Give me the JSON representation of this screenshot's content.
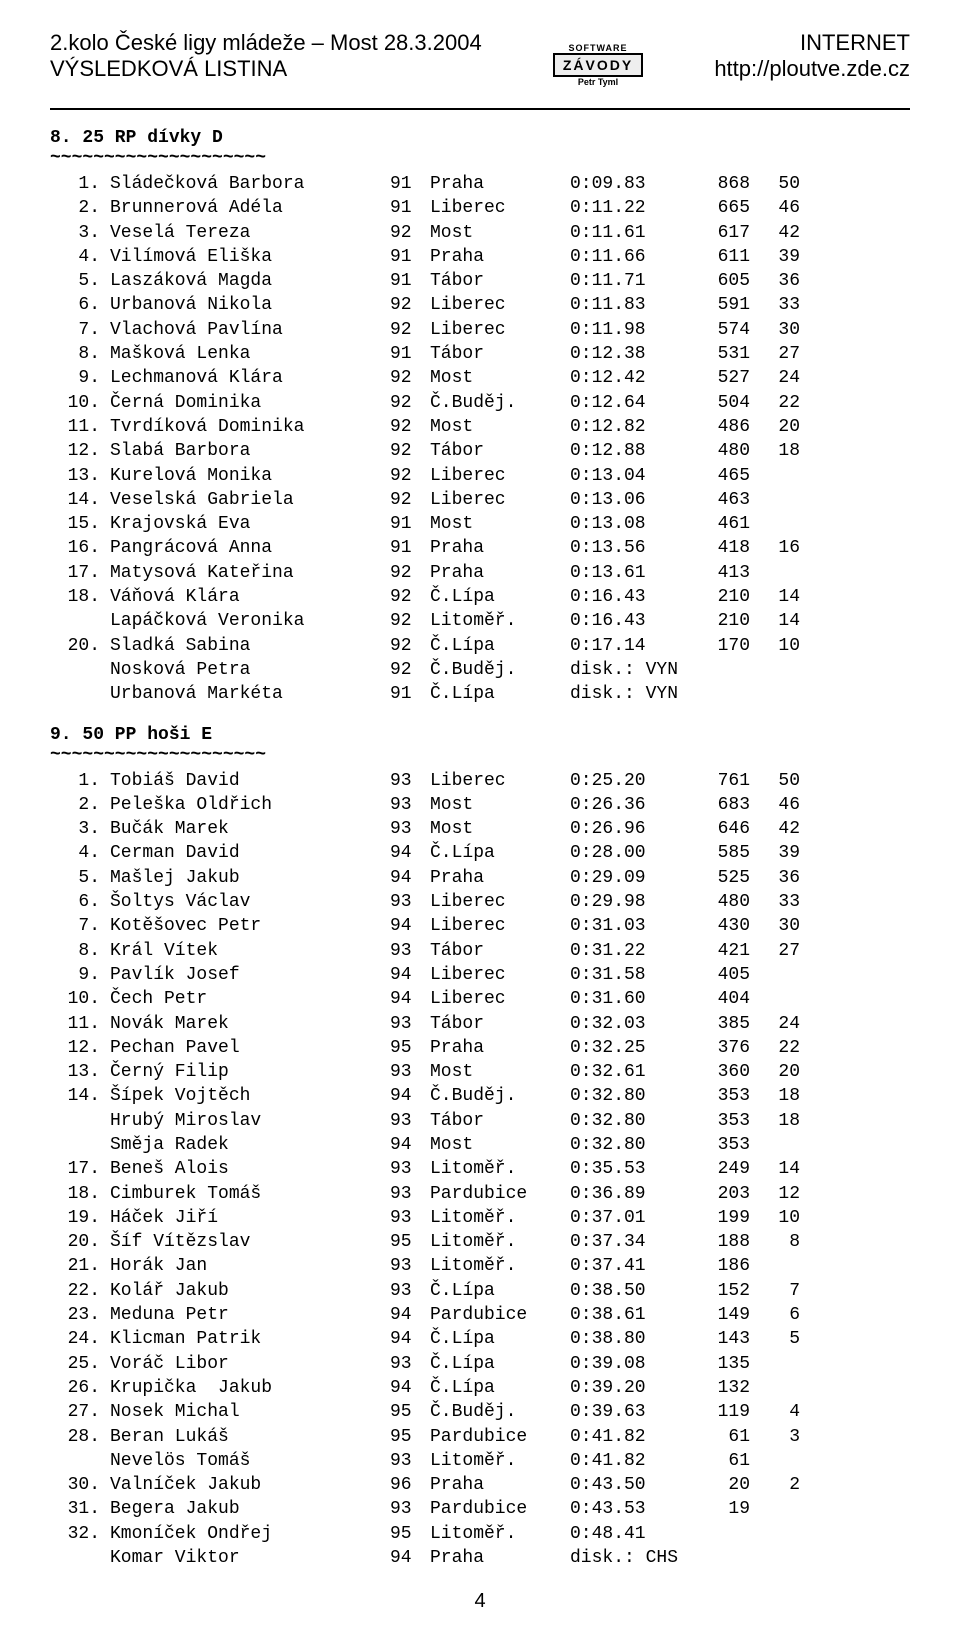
{
  "header": {
    "title_line1": "2.kolo České ligy mládeže – Most 28.3.2004",
    "title_line2": "VÝSLEDKOVÁ  LISTINA",
    "right_line1": "INTERNET",
    "right_line2": "http://ploutve.zde.cz",
    "logo_top": "SOFTWARE",
    "logo_mid": "ZÁVODY",
    "logo_bot": "Petr Tyml"
  },
  "section1": {
    "title": "8. 25 RP dívky D",
    "underline": "~~~~~~~~~~~~~~~~~~~~",
    "rows": [
      {
        "rank": "1.",
        "name": "Sládečková Barbora",
        "year": "91",
        "club": "Praha",
        "time": "0:09.83",
        "pts": "868",
        "bonus": "50"
      },
      {
        "rank": "2.",
        "name": "Brunnerová Adéla",
        "year": "91",
        "club": "Liberec",
        "time": "0:11.22",
        "pts": "665",
        "bonus": "46"
      },
      {
        "rank": "3.",
        "name": "Veselá Tereza",
        "year": "92",
        "club": "Most",
        "time": "0:11.61",
        "pts": "617",
        "bonus": "42"
      },
      {
        "rank": "4.",
        "name": "Vilímová Eliška",
        "year": "91",
        "club": "Praha",
        "time": "0:11.66",
        "pts": "611",
        "bonus": "39"
      },
      {
        "rank": "5.",
        "name": "Laszáková Magda",
        "year": "91",
        "club": "Tábor",
        "time": "0:11.71",
        "pts": "605",
        "bonus": "36"
      },
      {
        "rank": "6.",
        "name": "Urbanová Nikola",
        "year": "92",
        "club": "Liberec",
        "time": "0:11.83",
        "pts": "591",
        "bonus": "33"
      },
      {
        "rank": "7.",
        "name": "Vlachová Pavlína",
        "year": "92",
        "club": "Liberec",
        "time": "0:11.98",
        "pts": "574",
        "bonus": "30"
      },
      {
        "rank": "8.",
        "name": "Mašková Lenka",
        "year": "91",
        "club": "Tábor",
        "time": "0:12.38",
        "pts": "531",
        "bonus": "27"
      },
      {
        "rank": "9.",
        "name": "Lechmanová Klára",
        "year": "92",
        "club": "Most",
        "time": "0:12.42",
        "pts": "527",
        "bonus": "24"
      },
      {
        "rank": "10.",
        "name": "Černá Dominika",
        "year": "92",
        "club": "Č.Buděj.",
        "time": "0:12.64",
        "pts": "504",
        "bonus": "22"
      },
      {
        "rank": "11.",
        "name": "Tvrdíková Dominika",
        "year": "92",
        "club": "Most",
        "time": "0:12.82",
        "pts": "486",
        "bonus": "20"
      },
      {
        "rank": "12.",
        "name": "Slabá Barbora",
        "year": "92",
        "club": "Tábor",
        "time": "0:12.88",
        "pts": "480",
        "bonus": "18"
      },
      {
        "rank": "13.",
        "name": "Kurelová Monika",
        "year": "92",
        "club": "Liberec",
        "time": "0:13.04",
        "pts": "465",
        "bonus": ""
      },
      {
        "rank": "14.",
        "name": "Veselská Gabriela",
        "year": "92",
        "club": "Liberec",
        "time": "0:13.06",
        "pts": "463",
        "bonus": ""
      },
      {
        "rank": "15.",
        "name": "Krajovská Eva",
        "year": "91",
        "club": "Most",
        "time": "0:13.08",
        "pts": "461",
        "bonus": ""
      },
      {
        "rank": "16.",
        "name": "Pangrácová Anna",
        "year": "91",
        "club": "Praha",
        "time": "0:13.56",
        "pts": "418",
        "bonus": "16"
      },
      {
        "rank": "17.",
        "name": "Matysová Kateřina",
        "year": "92",
        "club": "Praha",
        "time": "0:13.61",
        "pts": "413",
        "bonus": ""
      },
      {
        "rank": "18.",
        "name": "Váňová Klára",
        "year": "92",
        "club": "Č.Lípa",
        "time": "0:16.43",
        "pts": "210",
        "bonus": "14"
      },
      {
        "rank": "",
        "name": "Lapáčková Veronika",
        "year": "92",
        "club": "Litoměř.",
        "time": "0:16.43",
        "pts": "210",
        "bonus": "14"
      },
      {
        "rank": "20.",
        "name": "Sladká Sabina",
        "year": "92",
        "club": "Č.Lípa",
        "time": "0:17.14",
        "pts": "170",
        "bonus": "10"
      },
      {
        "rank": "",
        "name": "Nosková Petra",
        "year": "92",
        "club": "Č.Buděj.",
        "time": "disk.: VYN",
        "pts": "",
        "bonus": ""
      },
      {
        "rank": "",
        "name": "Urbanová Markéta",
        "year": "91",
        "club": "Č.Lípa",
        "time": "disk.: VYN",
        "pts": "",
        "bonus": ""
      }
    ]
  },
  "section2": {
    "title": "9. 50 PP hoši E",
    "underline": "~~~~~~~~~~~~~~~~~~~~",
    "rows": [
      {
        "rank": "1.",
        "name": "Tobiáš David",
        "year": "93",
        "club": "Liberec",
        "time": "0:25.20",
        "pts": "761",
        "bonus": "50"
      },
      {
        "rank": "2.",
        "name": "Peleška Oldřich",
        "year": "93",
        "club": "Most",
        "time": "0:26.36",
        "pts": "683",
        "bonus": "46"
      },
      {
        "rank": "3.",
        "name": "Bučák Marek",
        "year": "93",
        "club": "Most",
        "time": "0:26.96",
        "pts": "646",
        "bonus": "42"
      },
      {
        "rank": "4.",
        "name": "Cerman David",
        "year": "94",
        "club": "Č.Lípa",
        "time": "0:28.00",
        "pts": "585",
        "bonus": "39"
      },
      {
        "rank": "5.",
        "name": "Mašlej Jakub",
        "year": "94",
        "club": "Praha",
        "time": "0:29.09",
        "pts": "525",
        "bonus": "36"
      },
      {
        "rank": "6.",
        "name": "Šoltys Václav",
        "year": "93",
        "club": "Liberec",
        "time": "0:29.98",
        "pts": "480",
        "bonus": "33"
      },
      {
        "rank": "7.",
        "name": "Kotěšovec Petr",
        "year": "94",
        "club": "Liberec",
        "time": "0:31.03",
        "pts": "430",
        "bonus": "30"
      },
      {
        "rank": "8.",
        "name": "Král Vítek",
        "year": "93",
        "club": "Tábor",
        "time": "0:31.22",
        "pts": "421",
        "bonus": "27"
      },
      {
        "rank": "9.",
        "name": "Pavlík Josef",
        "year": "94",
        "club": "Liberec",
        "time": "0:31.58",
        "pts": "405",
        "bonus": ""
      },
      {
        "rank": "10.",
        "name": "Čech Petr",
        "year": "94",
        "club": "Liberec",
        "time": "0:31.60",
        "pts": "404",
        "bonus": ""
      },
      {
        "rank": "11.",
        "name": "Novák Marek",
        "year": "93",
        "club": "Tábor",
        "time": "0:32.03",
        "pts": "385",
        "bonus": "24"
      },
      {
        "rank": "12.",
        "name": "Pechan Pavel",
        "year": "95",
        "club": "Praha",
        "time": "0:32.25",
        "pts": "376",
        "bonus": "22"
      },
      {
        "rank": "13.",
        "name": "Černý Filip",
        "year": "93",
        "club": "Most",
        "time": "0:32.61",
        "pts": "360",
        "bonus": "20"
      },
      {
        "rank": "14.",
        "name": "Šípek Vojtěch",
        "year": "94",
        "club": "Č.Buděj.",
        "time": "0:32.80",
        "pts": "353",
        "bonus": "18"
      },
      {
        "rank": "",
        "name": "Hrubý Miroslav",
        "year": "93",
        "club": "Tábor",
        "time": "0:32.80",
        "pts": "353",
        "bonus": "18"
      },
      {
        "rank": "",
        "name": "Směja Radek",
        "year": "94",
        "club": "Most",
        "time": "0:32.80",
        "pts": "353",
        "bonus": ""
      },
      {
        "rank": "17.",
        "name": "Beneš Alois",
        "year": "93",
        "club": "Litoměř.",
        "time": "0:35.53",
        "pts": "249",
        "bonus": "14"
      },
      {
        "rank": "18.",
        "name": "Cimburek Tomáš",
        "year": "93",
        "club": "Pardubice",
        "time": "0:36.89",
        "pts": "203",
        "bonus": "12"
      },
      {
        "rank": "19.",
        "name": "Háček Jiří",
        "year": "93",
        "club": "Litoměř.",
        "time": "0:37.01",
        "pts": "199",
        "bonus": "10"
      },
      {
        "rank": "20.",
        "name": "Šíf Vítězslav",
        "year": "95",
        "club": "Litoměř.",
        "time": "0:37.34",
        "pts": "188",
        "bonus": "8"
      },
      {
        "rank": "21.",
        "name": "Horák Jan",
        "year": "93",
        "club": "Litoměř.",
        "time": "0:37.41",
        "pts": "186",
        "bonus": ""
      },
      {
        "rank": "22.",
        "name": "Kolář Jakub",
        "year": "93",
        "club": "Č.Lípa",
        "time": "0:38.50",
        "pts": "152",
        "bonus": "7"
      },
      {
        "rank": "23.",
        "name": "Meduna Petr",
        "year": "94",
        "club": "Pardubice",
        "time": "0:38.61",
        "pts": "149",
        "bonus": "6"
      },
      {
        "rank": "24.",
        "name": "Klicman Patrik",
        "year": "94",
        "club": "Č.Lípa",
        "time": "0:38.80",
        "pts": "143",
        "bonus": "5"
      },
      {
        "rank": "25.",
        "name": "Voráč Libor",
        "year": "93",
        "club": "Č.Lípa",
        "time": "0:39.08",
        "pts": "135",
        "bonus": ""
      },
      {
        "rank": "26.",
        "name": "Krupička  Jakub",
        "year": "94",
        "club": "Č.Lípa",
        "time": "0:39.20",
        "pts": "132",
        "bonus": ""
      },
      {
        "rank": "27.",
        "name": "Nosek Michal",
        "year": "95",
        "club": "Č.Buděj.",
        "time": "0:39.63",
        "pts": "119",
        "bonus": "4"
      },
      {
        "rank": "28.",
        "name": "Beran Lukáš",
        "year": "95",
        "club": "Pardubice",
        "time": "0:41.82",
        "pts": "61",
        "bonus": "3"
      },
      {
        "rank": "",
        "name": "Nevelös Tomáš",
        "year": "93",
        "club": "Litoměř.",
        "time": "0:41.82",
        "pts": "61",
        "bonus": ""
      },
      {
        "rank": "30.",
        "name": "Valníček Jakub",
        "year": "96",
        "club": "Praha",
        "time": "0:43.50",
        "pts": "20",
        "bonus": "2"
      },
      {
        "rank": "31.",
        "name": "Begera Jakub",
        "year": "93",
        "club": "Pardubice",
        "time": "0:43.53",
        "pts": "19",
        "bonus": ""
      },
      {
        "rank": "32.",
        "name": "Kmoníček Ondřej",
        "year": "95",
        "club": "Litoměř.",
        "time": "0:48.41",
        "pts": "",
        "bonus": ""
      },
      {
        "rank": "",
        "name": "Komar Viktor",
        "year": "94",
        "club": "Praha",
        "time": "disk.: CHS",
        "pts": "",
        "bonus": ""
      }
    ]
  },
  "page_number": "4"
}
